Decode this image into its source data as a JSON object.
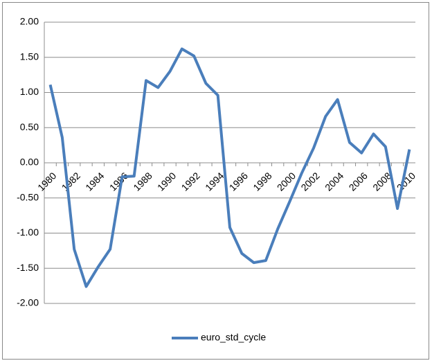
{
  "chart_data": {
    "type": "line",
    "categories": [
      "1980",
      null,
      "1982",
      null,
      "1984",
      null,
      "1986",
      null,
      "1988",
      null,
      "1990",
      null,
      "1992",
      null,
      "1994",
      null,
      "1996",
      null,
      "1998",
      null,
      "2000",
      null,
      "2002",
      null,
      "2004",
      null,
      "2006",
      null,
      "2008",
      null,
      "2010"
    ],
    "series": [
      {
        "name": "euro_std_cycle",
        "color": "#4a7ebb",
        "values": [
          1.11,
          0.36,
          -1.23,
          -1.76,
          -1.48,
          -1.23,
          -0.2,
          -0.19,
          1.17,
          1.07,
          1.3,
          1.62,
          1.52,
          1.13,
          0.96,
          -0.92,
          -1.29,
          -1.42,
          -1.39,
          -0.94,
          -0.55,
          -0.15,
          0.21,
          0.66,
          0.9,
          0.29,
          0.14,
          0.41,
          0.23,
          -0.65,
          0.19
        ]
      }
    ],
    "ylim": [
      -2,
      2
    ],
    "yticks": [
      {
        "value": -2,
        "label": "-2.00"
      },
      {
        "value": -1.5,
        "label": "-1.50"
      },
      {
        "value": -1,
        "label": "-1.00"
      },
      {
        "value": -0.5,
        "label": "-0.50"
      },
      {
        "value": 0,
        "label": "0.00"
      },
      {
        "value": 0.5,
        "label": "0.50"
      },
      {
        "value": 1,
        "label": "1.00"
      },
      {
        "value": 1.5,
        "label": "1.50"
      },
      {
        "value": 2,
        "label": "2.00"
      }
    ],
    "grid": true,
    "legend": "bottom"
  }
}
